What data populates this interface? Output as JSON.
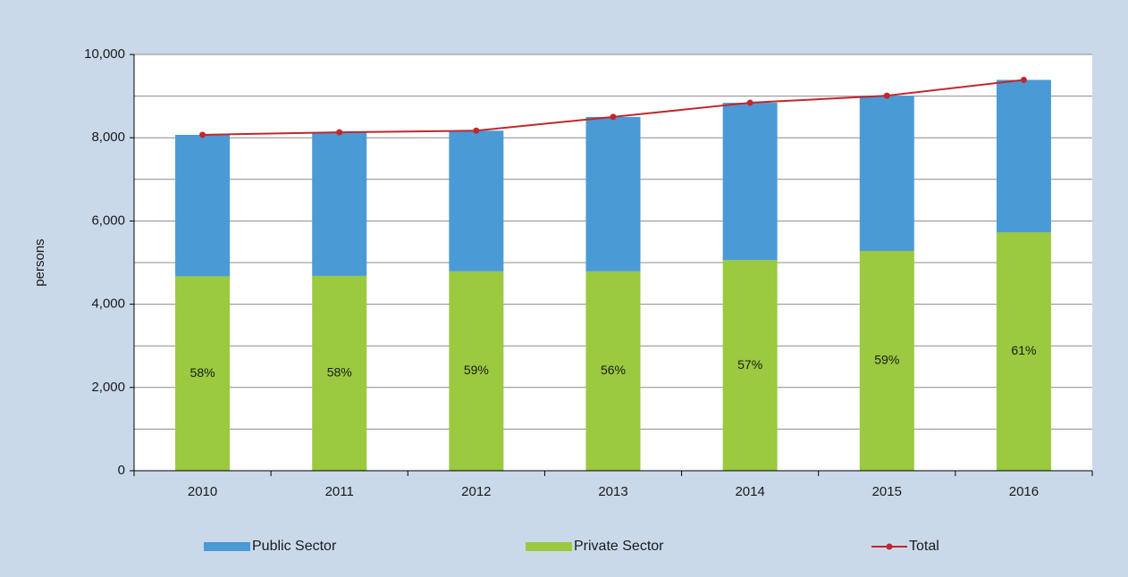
{
  "chart_data": {
    "type": "bar",
    "y_label": "persons",
    "categories": [
      "2010",
      "2011",
      "2012",
      "2013",
      "2014",
      "2015",
      "2016"
    ],
    "series": [
      {
        "name": "Public Sector",
        "type": "bar",
        "color": "#4a9ad6",
        "values": [
          3400,
          3450,
          3380,
          3710,
          3780,
          3730,
          3660
        ]
      },
      {
        "name": "Private Sector",
        "type": "bar",
        "color": "#9bc93f",
        "values": [
          4670,
          4680,
          4790,
          4790,
          5060,
          5280,
          5730
        ],
        "share_labels": [
          "58%",
          "58%",
          "59%",
          "56%",
          "57%",
          "59%",
          "61%"
        ]
      },
      {
        "name": "Total",
        "type": "line",
        "color": "#c0282d",
        "values": [
          8070,
          8130,
          8170,
          8500,
          8840,
          9010,
          9390
        ]
      }
    ],
    "ylim": [
      0,
      10000
    ],
    "yticks": [
      0,
      {
        "value": 2000,
        "label": "2,000"
      },
      {
        "value": 4000,
        "label": "4,000"
      },
      {
        "value": 6000,
        "label": "6,000"
      },
      {
        "value": 8000,
        "label": "8,000"
      },
      {
        "value": 10000,
        "label": "10,000"
      }
    ],
    "minor_yticks": [
      1000,
      3000,
      5000,
      7000,
      9000
    ],
    "grid": true,
    "legend": "bottom"
  }
}
